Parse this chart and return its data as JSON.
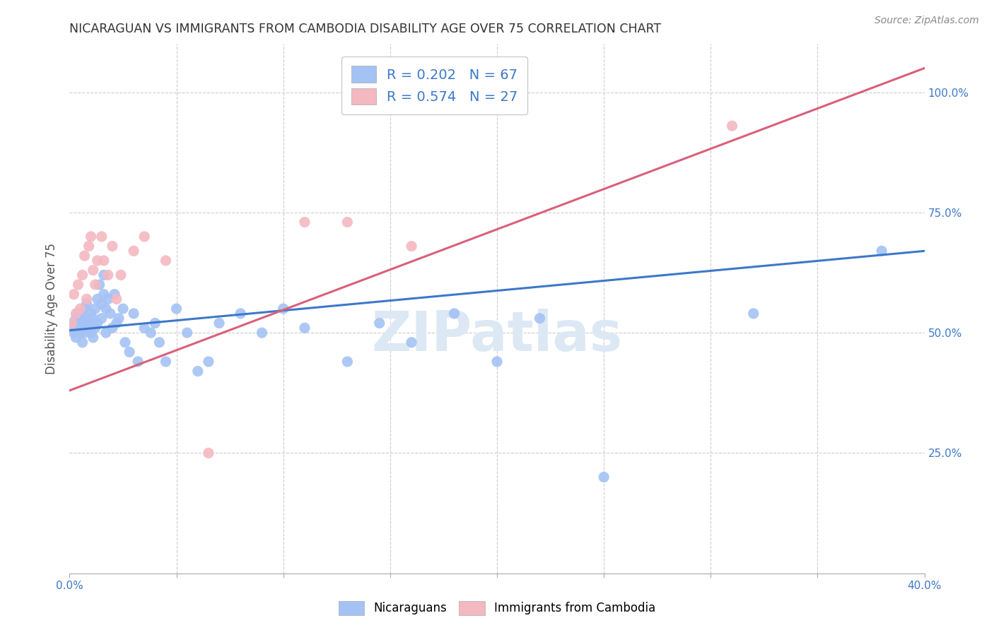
{
  "title": "NICARAGUAN VS IMMIGRANTS FROM CAMBODIA DISABILITY AGE OVER 75 CORRELATION CHART",
  "source": "Source: ZipAtlas.com",
  "ylabel": "Disability Age Over 75",
  "ytick_labels": [
    "",
    "25.0%",
    "50.0%",
    "75.0%",
    "100.0%"
  ],
  "ytick_positions": [
    0.0,
    0.25,
    0.5,
    0.75,
    1.0
  ],
  "xlim": [
    0.0,
    0.4
  ],
  "ylim": [
    0.0,
    1.1
  ],
  "blue_color": "#a4c2f4",
  "pink_color": "#f4b8c1",
  "blue_line_color": "#3d78c9",
  "pink_line_color": "#d9607a",
  "legend_text_color": "#3d78c9",
  "watermark": "ZIPatlas",
  "R_blue": 0.202,
  "N_blue": 67,
  "R_pink": 0.574,
  "N_pink": 27,
  "nicaraguan_x": [
    0.001,
    0.002,
    0.002,
    0.003,
    0.003,
    0.004,
    0.004,
    0.005,
    0.005,
    0.005,
    0.006,
    0.006,
    0.007,
    0.007,
    0.008,
    0.008,
    0.009,
    0.009,
    0.01,
    0.01,
    0.011,
    0.011,
    0.012,
    0.012,
    0.013,
    0.013,
    0.014,
    0.015,
    0.015,
    0.016,
    0.016,
    0.017,
    0.017,
    0.018,
    0.019,
    0.02,
    0.021,
    0.022,
    0.023,
    0.025,
    0.026,
    0.028,
    0.03,
    0.032,
    0.035,
    0.038,
    0.04,
    0.042,
    0.045,
    0.05,
    0.055,
    0.06,
    0.065,
    0.07,
    0.08,
    0.09,
    0.1,
    0.11,
    0.13,
    0.145,
    0.16,
    0.18,
    0.2,
    0.22,
    0.25,
    0.32,
    0.38
  ],
  "nicaraguan_y": [
    0.51,
    0.52,
    0.5,
    0.53,
    0.49,
    0.54,
    0.51,
    0.52,
    0.5,
    0.53,
    0.54,
    0.48,
    0.55,
    0.5,
    0.52,
    0.56,
    0.51,
    0.53,
    0.5,
    0.54,
    0.53,
    0.49,
    0.55,
    0.51,
    0.57,
    0.52,
    0.6,
    0.56,
    0.53,
    0.62,
    0.58,
    0.55,
    0.5,
    0.57,
    0.54,
    0.51,
    0.58,
    0.52,
    0.53,
    0.55,
    0.48,
    0.46,
    0.54,
    0.44,
    0.51,
    0.5,
    0.52,
    0.48,
    0.44,
    0.55,
    0.5,
    0.42,
    0.44,
    0.52,
    0.54,
    0.5,
    0.55,
    0.51,
    0.44,
    0.52,
    0.48,
    0.54,
    0.44,
    0.53,
    0.2,
    0.54,
    0.67
  ],
  "cambodia_x": [
    0.001,
    0.002,
    0.003,
    0.004,
    0.005,
    0.006,
    0.007,
    0.008,
    0.009,
    0.01,
    0.011,
    0.012,
    0.013,
    0.015,
    0.016,
    0.018,
    0.02,
    0.022,
    0.024,
    0.03,
    0.035,
    0.045,
    0.065,
    0.11,
    0.13,
    0.16,
    0.31
  ],
  "cambodia_y": [
    0.52,
    0.58,
    0.54,
    0.6,
    0.55,
    0.62,
    0.66,
    0.57,
    0.68,
    0.7,
    0.63,
    0.6,
    0.65,
    0.7,
    0.65,
    0.62,
    0.68,
    0.57,
    0.62,
    0.67,
    0.7,
    0.65,
    0.25,
    0.73,
    0.73,
    0.68,
    0.93
  ],
  "blue_trendline_x": [
    0.0,
    0.4
  ],
  "blue_trendline_y": [
    0.505,
    0.67
  ],
  "pink_trendline_x": [
    0.0,
    0.4
  ],
  "pink_trendline_y": [
    0.38,
    1.05
  ]
}
